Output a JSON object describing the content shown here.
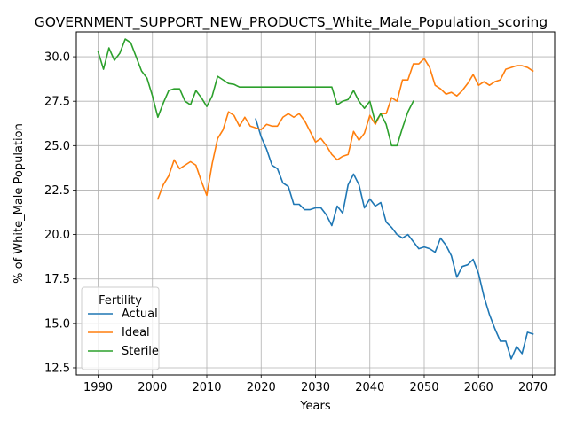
{
  "chart_data": {
    "type": "line",
    "title": "GOVERNMENT_SUPPORT_NEW_PRODUCTS_White_Male_Population_scoring",
    "xlabel": "Years",
    "ylabel": "% of White_Male Population",
    "xlim": [
      1986,
      2074
    ],
    "ylim": [
      12.1,
      31.4
    ],
    "x_ticks": [
      1990,
      2000,
      2010,
      2020,
      2030,
      2040,
      2050,
      2060,
      2070
    ],
    "y_ticks": [
      12.5,
      15.0,
      17.5,
      20.0,
      22.5,
      25.0,
      27.5,
      30.0
    ],
    "grid": true,
    "legend": {
      "title": "Fertility",
      "placement": "bottom-left"
    },
    "series": [
      {
        "name": "Actual",
        "color": "#1f77b4",
        "x": [
          2019,
          2020,
          2021,
          2022,
          2023,
          2024,
          2025,
          2026,
          2027,
          2028,
          2029,
          2030,
          2031,
          2032,
          2033,
          2034,
          2035,
          2036,
          2037,
          2038,
          2039,
          2040,
          2041,
          2042,
          2043,
          2044,
          2045,
          2046,
          2047,
          2048,
          2049,
          2050,
          2051,
          2052,
          2053,
          2054,
          2055,
          2056,
          2057,
          2058,
          2059,
          2060,
          2061,
          2062,
          2063,
          2064,
          2065,
          2066,
          2067,
          2068,
          2069,
          2070
        ],
        "y": [
          26.5,
          25.5,
          24.8,
          23.9,
          23.7,
          22.9,
          22.7,
          21.7,
          21.7,
          21.4,
          21.4,
          21.5,
          21.5,
          21.1,
          20.5,
          21.6,
          21.2,
          22.8,
          23.4,
          22.8,
          21.5,
          22.0,
          21.6,
          21.8,
          20.7,
          20.4,
          20.0,
          19.8,
          20.0,
          19.6,
          19.2,
          19.3,
          19.2,
          19.0,
          19.8,
          19.4,
          18.8,
          17.6,
          18.2,
          18.3,
          18.6,
          17.8,
          16.5,
          15.5,
          14.7,
          14.0,
          14.0,
          13.0,
          13.7,
          13.3,
          14.5,
          14.4
        ]
      },
      {
        "name": "Ideal",
        "color": "#ff7f0e",
        "x": [
          2001,
          2002,
          2003,
          2004,
          2005,
          2006,
          2007,
          2008,
          2009,
          2010,
          2011,
          2012,
          2013,
          2014,
          2015,
          2016,
          2017,
          2018,
          2019,
          2020,
          2021,
          2022,
          2023,
          2024,
          2025,
          2026,
          2027,
          2028,
          2029,
          2030,
          2031,
          2032,
          2033,
          2034,
          2035,
          2036,
          2037,
          2038,
          2039,
          2040,
          2041,
          2042,
          2043,
          2044,
          2045,
          2046,
          2047,
          2048,
          2049,
          2050,
          2051,
          2052,
          2053,
          2054,
          2055,
          2056,
          2057,
          2058,
          2059,
          2060,
          2061,
          2062,
          2063,
          2064,
          2065,
          2066,
          2067,
          2068,
          2069,
          2070
        ],
        "y": [
          22.0,
          22.8,
          23.3,
          24.2,
          23.7,
          23.9,
          24.1,
          23.9,
          23.0,
          22.2,
          24.0,
          25.4,
          25.9,
          26.9,
          26.7,
          26.1,
          26.6,
          26.1,
          26.0,
          25.9,
          26.2,
          26.1,
          26.1,
          26.6,
          26.8,
          26.6,
          26.8,
          26.4,
          25.8,
          25.2,
          25.4,
          25.0,
          24.5,
          24.2,
          24.4,
          24.5,
          25.8,
          25.3,
          25.7,
          26.7,
          26.2,
          26.8,
          26.8,
          27.7,
          27.5,
          28.7,
          28.7,
          29.6,
          29.6,
          29.9,
          29.4,
          28.4,
          28.2,
          27.9,
          28.0,
          27.8,
          28.1,
          28.5,
          29.0,
          28.4,
          28.6,
          28.4,
          28.6,
          28.7,
          29.3,
          29.4,
          29.5,
          29.5,
          29.4,
          29.2
        ]
      },
      {
        "name": "Sterile",
        "color": "#2ca02c",
        "x": [
          1990,
          1991,
          1992,
          1993,
          1994,
          1995,
          1996,
          1997,
          1998,
          1999,
          2000,
          2001,
          2002,
          2003,
          2004,
          2005,
          2006,
          2007,
          2008,
          2009,
          2010,
          2011,
          2012,
          2013,
          2014,
          2015,
          2016,
          2017,
          2018,
          2019,
          2020,
          2021,
          2022,
          2023,
          2024,
          2025,
          2026,
          2027,
          2028,
          2029,
          2030,
          2031,
          2032,
          2033,
          2034,
          2035,
          2036,
          2037,
          2038,
          2039,
          2040,
          2041,
          2042,
          2043,
          2044,
          2045,
          2046,
          2047,
          2048
        ],
        "y": [
          30.3,
          29.3,
          30.5,
          29.8,
          30.2,
          31.0,
          30.8,
          30.0,
          29.2,
          28.8,
          27.8,
          26.6,
          27.4,
          28.1,
          28.2,
          28.2,
          27.5,
          27.3,
          28.1,
          27.7,
          27.2,
          27.8,
          28.9,
          28.7,
          28.5,
          28.45,
          28.3,
          28.3,
          28.3,
          28.3,
          28.3,
          28.3,
          28.3,
          28.3,
          28.3,
          28.3,
          28.3,
          28.3,
          28.3,
          28.3,
          28.3,
          28.3,
          28.3,
          28.3,
          27.3,
          27.5,
          27.6,
          28.1,
          27.5,
          27.1,
          27.5,
          26.3,
          26.8,
          26.2,
          25.0,
          25.0,
          26.0,
          26.9,
          27.5
        ]
      }
    ]
  }
}
